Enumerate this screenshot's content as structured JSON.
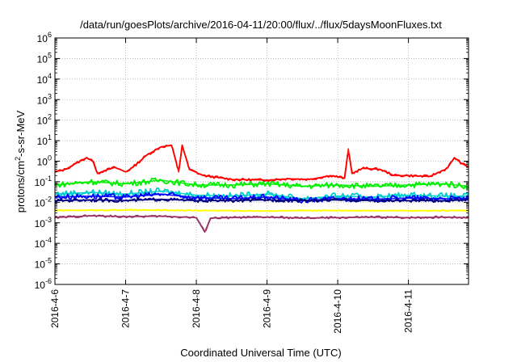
{
  "chart_data": {
    "type": "line",
    "title": "/data/run/goesPlots/archive/2016-04-11/20:00/flux/../flux/5daysMoonFluxes.txt",
    "xlabel": "Coordinated Universal Time (UTC)",
    "ylabel": {
      "pre": "protons/cm",
      "sup": "2",
      "post": "-s-sr-MeV"
    },
    "y_scale": "log",
    "ylim": [
      1e-06,
      1000000.0
    ],
    "y_ticks": [
      {
        "base": "10",
        "exp": "-6",
        "value": -6
      },
      {
        "base": "10",
        "exp": "-5",
        "value": -5
      },
      {
        "base": "10",
        "exp": "-4",
        "value": -4
      },
      {
        "base": "10",
        "exp": "-3",
        "value": -3
      },
      {
        "base": "10",
        "exp": "-2",
        "value": -2
      },
      {
        "base": "10",
        "exp": "-1",
        "value": -1
      },
      {
        "base": "10",
        "exp": "0",
        "value": 0
      },
      {
        "base": "10",
        "exp": "1",
        "value": 1
      },
      {
        "base": "10",
        "exp": "2",
        "value": 2
      },
      {
        "base": "10",
        "exp": "3",
        "value": 3
      },
      {
        "base": "10",
        "exp": "4",
        "value": 4
      },
      {
        "base": "10",
        "exp": "5",
        "value": 5
      },
      {
        "base": "10",
        "exp": "6",
        "value": 6
      }
    ],
    "x_ticks": [
      "2016-4-6",
      "2016-4-7",
      "2016-4-8",
      "2016-4-9",
      "2016-4-10",
      "2016-4-11"
    ],
    "x_range_days": [
      0,
      5.85
    ],
    "grid": true,
    "series": [
      {
        "color": "#ff0000",
        "points": [
          [
            0,
            0.3
          ],
          [
            0.15,
            0.4
          ],
          [
            0.3,
            0.8
          ],
          [
            0.45,
            1.5
          ],
          [
            0.55,
            0.9
          ],
          [
            0.6,
            0.25
          ],
          [
            0.7,
            0.35
          ],
          [
            0.85,
            0.5
          ],
          [
            1.0,
            0.3
          ],
          [
            1.1,
            0.5
          ],
          [
            1.3,
            2
          ],
          [
            1.5,
            5
          ],
          [
            1.65,
            6
          ],
          [
            1.75,
            0.3
          ],
          [
            1.8,
            6
          ],
          [
            1.9,
            0.4
          ],
          [
            2.1,
            0.2
          ],
          [
            2.5,
            0.13
          ],
          [
            3.0,
            0.12
          ],
          [
            3.3,
            0.14
          ],
          [
            3.6,
            0.13
          ],
          [
            3.9,
            0.2
          ],
          [
            4.1,
            0.15
          ],
          [
            4.15,
            4
          ],
          [
            4.2,
            0.25
          ],
          [
            4.35,
            0.45
          ],
          [
            4.6,
            0.4
          ],
          [
            4.8,
            0.2
          ],
          [
            5.0,
            0.2
          ],
          [
            5.3,
            0.18
          ],
          [
            5.55,
            0.45
          ],
          [
            5.65,
            1.5
          ],
          [
            5.75,
            0.8
          ],
          [
            5.85,
            0.5
          ]
        ]
      },
      {
        "color": "#00ee00",
        "points": [
          [
            0,
            0.07
          ],
          [
            0.5,
            0.1
          ],
          [
            1.0,
            0.08
          ],
          [
            1.5,
            0.12
          ],
          [
            2.0,
            0.07
          ],
          [
            2.5,
            0.07
          ],
          [
            3.0,
            0.08
          ],
          [
            3.5,
            0.06
          ],
          [
            4.0,
            0.07
          ],
          [
            4.5,
            0.06
          ],
          [
            5.0,
            0.07
          ],
          [
            5.5,
            0.08
          ],
          [
            5.85,
            0.06
          ]
        ]
      },
      {
        "color": "#00cccc",
        "points": [
          [
            0,
            0.025
          ],
          [
            0.5,
            0.03
          ],
          [
            1.0,
            0.025
          ],
          [
            1.5,
            0.035
          ],
          [
            2.0,
            0.022
          ],
          [
            2.5,
            0.02
          ],
          [
            3.0,
            0.025
          ],
          [
            3.5,
            0.015
          ],
          [
            4.0,
            0.02
          ],
          [
            4.5,
            0.018
          ],
          [
            5.0,
            0.022
          ],
          [
            5.5,
            0.02
          ],
          [
            5.85,
            0.02
          ]
        ]
      },
      {
        "color": "#0000ff",
        "points": [
          [
            0,
            0.018
          ],
          [
            0.5,
            0.02
          ],
          [
            1.0,
            0.018
          ],
          [
            1.5,
            0.025
          ],
          [
            2.0,
            0.017
          ],
          [
            2.5,
            0.015
          ],
          [
            3.0,
            0.018
          ],
          [
            3.5,
            0.012
          ],
          [
            4.0,
            0.015
          ],
          [
            4.5,
            0.014
          ],
          [
            5.0,
            0.016
          ],
          [
            5.5,
            0.015
          ],
          [
            5.85,
            0.015
          ]
        ]
      },
      {
        "color": "#000080",
        "points": [
          [
            0,
            0.012
          ],
          [
            0.5,
            0.013
          ],
          [
            1.0,
            0.012
          ],
          [
            1.5,
            0.014
          ],
          [
            2.0,
            0.012
          ],
          [
            2.5,
            0.012
          ],
          [
            3.0,
            0.013
          ],
          [
            3.5,
            0.012
          ],
          [
            4.0,
            0.013
          ],
          [
            4.5,
            0.012
          ],
          [
            5.0,
            0.012
          ],
          [
            5.5,
            0.012
          ],
          [
            5.85,
            0.013
          ]
        ]
      },
      {
        "color": "#ffff00",
        "points": [
          [
            0,
            0.004
          ],
          [
            1.0,
            0.0042
          ],
          [
            2.0,
            0.004
          ],
          [
            3.0,
            0.0038
          ],
          [
            4.0,
            0.004
          ],
          [
            5.0,
            0.0039
          ],
          [
            5.85,
            0.004
          ]
        ]
      },
      {
        "color": "#993366",
        "points": [
          [
            0,
            0.0018
          ],
          [
            0.5,
            0.0022
          ],
          [
            1.0,
            0.002
          ],
          [
            1.5,
            0.0021
          ],
          [
            2.0,
            0.0018
          ],
          [
            2.12,
            0.00035
          ],
          [
            2.2,
            0.0017
          ],
          [
            2.5,
            0.0018
          ],
          [
            3.0,
            0.0019
          ],
          [
            3.5,
            0.0017
          ],
          [
            4.0,
            0.0018
          ],
          [
            4.5,
            0.0019
          ],
          [
            5.0,
            0.0018
          ],
          [
            5.5,
            0.0019
          ],
          [
            5.85,
            0.0018
          ]
        ]
      }
    ]
  }
}
